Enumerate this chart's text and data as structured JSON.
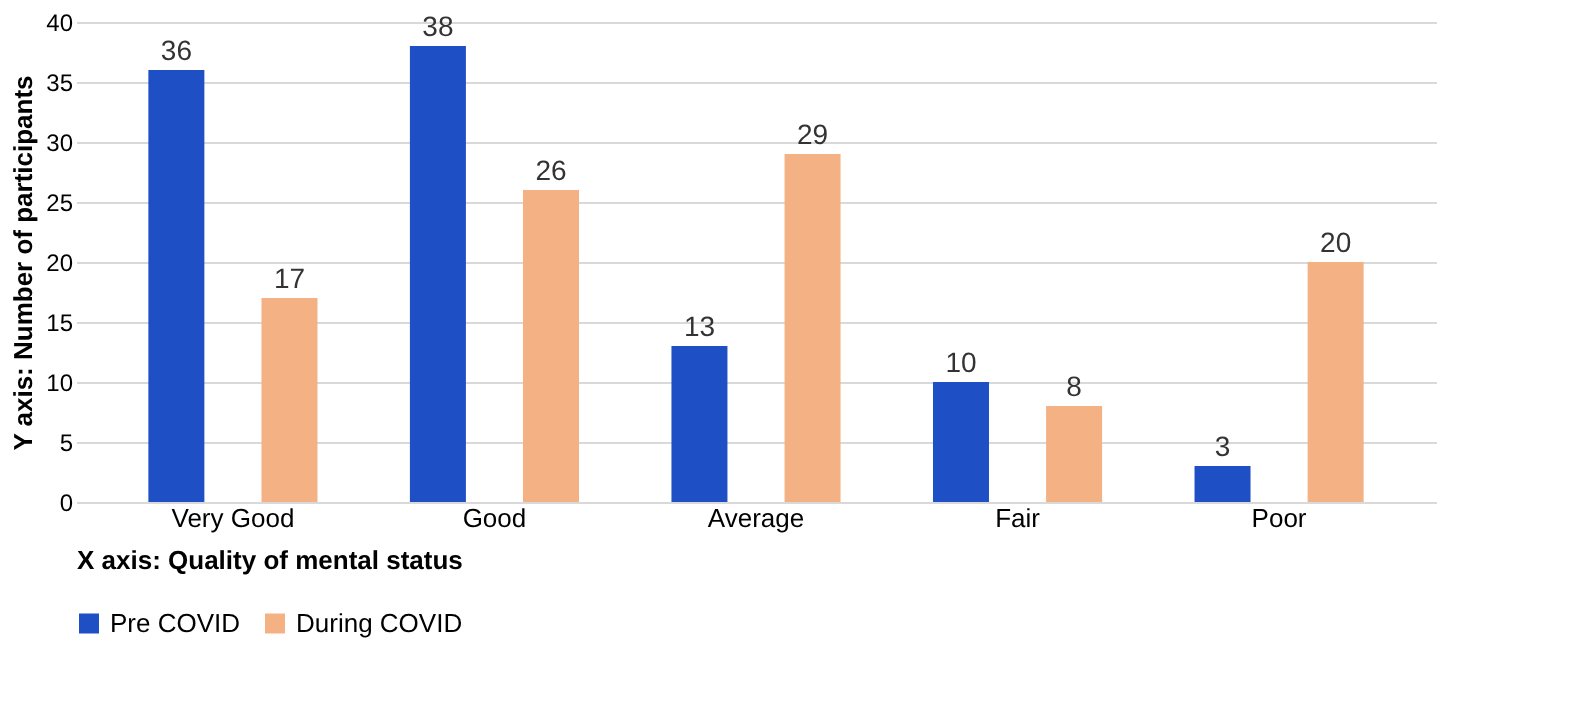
{
  "chart_data": {
    "type": "bar",
    "categories": [
      "Very Good",
      "Good",
      "Average",
      "Fair",
      "Poor"
    ],
    "series": [
      {
        "name": "Pre COVID",
        "color": "#1f4fc4",
        "values": [
          36,
          38,
          13,
          10,
          3
        ]
      },
      {
        "name": "During COVID",
        "color": "#f4b183",
        "values": [
          17,
          26,
          29,
          8,
          20
        ]
      }
    ],
    "xlabel": "X axis: Quality of mental status",
    "ylabel": "Y axis: Number of participants",
    "ylim": [
      0,
      40
    ],
    "yticks": [
      0,
      5,
      10,
      15,
      20,
      25,
      30,
      35,
      40
    ],
    "grid": "y",
    "legend": "bottom",
    "data_labels": true
  }
}
